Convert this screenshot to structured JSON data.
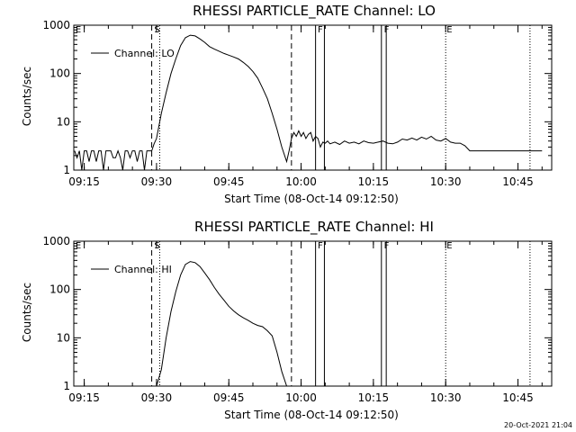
{
  "footer": {
    "timestamp": "20-Oct-2021 21:04"
  },
  "chart_data": [
    {
      "type": "line",
      "title": "RHESSI PARTICLE_RATE Channel: LO",
      "xlabel": "Start Time (08-Oct-14 09:12:50)",
      "ylabel": "Counts/sec",
      "xlim": [
        "09:12:50",
        "10:52:00"
      ],
      "ylim": [
        1,
        1000
      ],
      "yscale": "log",
      "xticks": [
        "09:15",
        "09:30",
        "09:45",
        "10:00",
        "10:15",
        "10:30",
        "10:45"
      ],
      "yticks": [
        "1",
        "10",
        "100",
        "1000"
      ],
      "legend": {
        "position": "top-left",
        "entries": [
          "Channel: LO"
        ]
      },
      "series": [
        {
          "name": "Channel: LO",
          "x": [
            "09:13:00",
            "09:13:30",
            "09:14:00",
            "09:14:30",
            "09:15:00",
            "09:15:30",
            "09:16:00",
            "09:16:30",
            "09:17:00",
            "09:17:30",
            "09:18:00",
            "09:18:30",
            "09:19:00",
            "09:19:30",
            "09:20:00",
            "09:20:30",
            "09:21:00",
            "09:21:30",
            "09:22:00",
            "09:22:30",
            "09:23:00",
            "09:23:30",
            "09:24:00",
            "09:24:30",
            "09:25:00",
            "09:25:30",
            "09:26:00",
            "09:26:30",
            "09:27:00",
            "09:27:30",
            "09:28:00",
            "09:28:30",
            "09:29:00",
            "09:29:30",
            "09:30:00",
            "09:31:00",
            "09:32:00",
            "09:33:00",
            "09:34:00",
            "09:35:00",
            "09:36:00",
            "09:37:00",
            "09:38:00",
            "09:39:00",
            "09:40:00",
            "09:41:00",
            "09:42:00",
            "09:43:00",
            "09:44:00",
            "09:45:00",
            "09:46:00",
            "09:47:00",
            "09:48:00",
            "09:49:00",
            "09:50:00",
            "09:51:00",
            "09:52:00",
            "09:53:00",
            "09:54:00",
            "09:55:00",
            "09:56:00",
            "09:57:00",
            "09:57:30",
            "09:58:00",
            "09:58:30",
            "09:59:00",
            "09:59:30",
            "10:00:00",
            "10:00:30",
            "10:01:00",
            "10:01:30",
            "10:02:00",
            "10:02:30",
            "10:03:00",
            "10:03:30",
            "10:04:00",
            "10:04:30",
            "10:05:00",
            "10:05:30",
            "10:06:00",
            "10:07:00",
            "10:08:00",
            "10:09:00",
            "10:10:00",
            "10:11:00",
            "10:12:00",
            "10:13:00",
            "10:14:00",
            "10:15:00",
            "10:16:00",
            "10:17:00",
            "10:18:00",
            "10:19:00",
            "10:20:00",
            "10:21:00",
            "10:22:00",
            "10:23:00",
            "10:24:00",
            "10:25:00",
            "10:26:00",
            "10:27:00",
            "10:28:00",
            "10:29:00",
            "10:30:00",
            "10:31:00",
            "10:32:00",
            "10:33:00",
            "10:34:00",
            "10:35:00",
            "10:36:00",
            "10:37:00",
            "10:38:00",
            "10:39:00",
            "10:40:00",
            "10:41:00",
            "10:42:00",
            "10:43:00",
            "10:44:00",
            "10:45:00",
            "10:46:00",
            "10:47:00",
            "10:48:00",
            "10:49:00",
            "10:50:00"
          ],
          "y": [
            2.5,
            1.8,
            2.5,
            1.0,
            2.5,
            2.5,
            1.5,
            2.5,
            2.5,
            1.5,
            2.5,
            2.5,
            1.0,
            2.5,
            2.5,
            2.5,
            1.8,
            1.8,
            2.5,
            1.8,
            1.0,
            2.5,
            2.5,
            1.8,
            2.5,
            2.5,
            1.5,
            2.5,
            2.5,
            1.0,
            2.5,
            2.5,
            2.5,
            3.5,
            4.5,
            15,
            40,
            100,
            200,
            380,
            550,
            620,
            600,
            520,
            440,
            360,
            320,
            290,
            260,
            240,
            220,
            200,
            170,
            140,
            110,
            80,
            50,
            30,
            15,
            7,
            3,
            1.5,
            2.5,
            4.5,
            6,
            5,
            6.5,
            5,
            6,
            4.5,
            5.5,
            6,
            4,
            5,
            4.5,
            3,
            3.8,
            3.6,
            4,
            3.5,
            3.8,
            3.4,
            4,
            3.6,
            3.8,
            3.5,
            4,
            3.7,
            3.6,
            3.8,
            4,
            3.6,
            3.5,
            3.8,
            4.4,
            4.2,
            4.6,
            4.2,
            4.8,
            4.4,
            5,
            4.2,
            4,
            4.5,
            3.8,
            3.6,
            3.6,
            3.2,
            2.5,
            2.5,
            2.5,
            2.5,
            2.5,
            2.5,
            2.5,
            2.5,
            2.5,
            2.5,
            2.5,
            2.5,
            2.5,
            2.5,
            2.5,
            2.5
          ]
        }
      ]
    },
    {
      "type": "line",
      "title": "RHESSI PARTICLE_RATE Channel: HI",
      "xlabel": "Start Time (08-Oct-14 09:12:50)",
      "ylabel": "Counts/sec",
      "xlim": [
        "09:12:50",
        "10:52:00"
      ],
      "ylim": [
        1,
        1000
      ],
      "yscale": "log",
      "xticks": [
        "09:15",
        "09:30",
        "09:45",
        "10:00",
        "10:15",
        "10:30",
        "10:45"
      ],
      "yticks": [
        "1",
        "10",
        "100",
        "1000"
      ],
      "legend": {
        "position": "top-left",
        "entries": [
          "Channel: HI"
        ]
      },
      "series": [
        {
          "name": "Channel: HI",
          "x": [
            "09:30:00",
            "09:31:00",
            "09:32:00",
            "09:33:00",
            "09:34:00",
            "09:35:00",
            "09:36:00",
            "09:37:00",
            "09:38:00",
            "09:39:00",
            "09:40:00",
            "09:41:00",
            "09:42:00",
            "09:43:00",
            "09:44:00",
            "09:45:00",
            "09:46:00",
            "09:47:00",
            "09:48:00",
            "09:49:00",
            "09:50:00",
            "09:51:00",
            "09:52:00",
            "09:53:00",
            "09:54:00",
            "09:55:00",
            "09:56:00",
            "09:57:00"
          ],
          "y": [
            1.0,
            2.2,
            10,
            35,
            90,
            200,
            330,
            380,
            360,
            300,
            220,
            160,
            110,
            80,
            60,
            45,
            36,
            30,
            26,
            23,
            20,
            18,
            17,
            14,
            11,
            5,
            2,
            1.0
          ]
        }
      ]
    }
  ],
  "markers": {
    "labels": [
      "E",
      "S",
      "F",
      "F",
      "E"
    ],
    "times": [
      "09:13:00",
      "09:29:20",
      "10:03:15",
      "10:17:00",
      "10:30:00"
    ],
    "dashed": [
      "09:29:00",
      "09:58:00"
    ],
    "dotted": [
      "09:30:40",
      "10:30:00",
      "10:47:30"
    ],
    "double_solid": [
      [
        "10:03:00",
        "10:04:50"
      ],
      [
        "10:16:40",
        "10:17:40"
      ]
    ]
  }
}
